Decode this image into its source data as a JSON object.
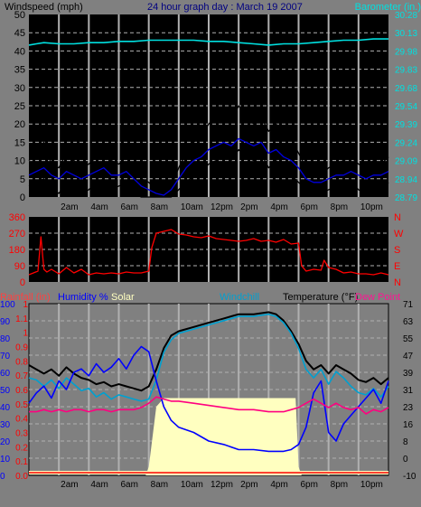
{
  "title": "24 hour graph day : March 19 2007",
  "colors": {
    "background": "#808080",
    "plot_bg": "#000000",
    "grid": "#b0b0b0",
    "wind": "#000000",
    "gust": "#000000",
    "wind_avg": "#0000e0",
    "wind_dir": "#ff0000",
    "barometer": "#00e0e0",
    "temperature": "#000000",
    "windchill": "#00a0d0",
    "dewpoint": "#ff0080",
    "humidity": "#0000ff",
    "solar": "#ffffc0",
    "rain": "#ff0000"
  },
  "time_labels": [
    "2am",
    "4am",
    "6am",
    "8am",
    "10am",
    "12pm",
    "2pm",
    "4pm",
    "6pm",
    "8pm",
    "10pm"
  ],
  "chart_data": [
    {
      "type": "line",
      "id": "wind_baro",
      "title": "24 hour graph day : March 19 2007",
      "left_label": "Windspeed (mph)",
      "right_label": "Barometer (in.)",
      "x_range_hours": [
        0,
        24
      ],
      "ylim_left": [
        0,
        50
      ],
      "left_ticks": [
        "50",
        "45",
        "40",
        "35",
        "30",
        "25",
        "20",
        "15",
        "10",
        "5",
        "0"
      ],
      "ylim_right": [
        28.79,
        30.28
      ],
      "right_ticks": [
        "30.28",
        "30.13",
        "29.98",
        "29.83",
        "29.68",
        "29.54",
        "29.39",
        "29.24",
        "29.09",
        "28.94",
        "28.79"
      ],
      "grid": true,
      "series": [
        {
          "key": "barometer",
          "axis": "right",
          "x": [
            0,
            0.5,
            1,
            2,
            3,
            4,
            5,
            6,
            7,
            8,
            9,
            10,
            11,
            12,
            13,
            14,
            15,
            16,
            17,
            18,
            19,
            20,
            21,
            22,
            23,
            24
          ],
          "values": [
            30.03,
            30.04,
            30.05,
            30.04,
            30.04,
            30.05,
            30.05,
            30.06,
            30.06,
            30.07,
            30.07,
            30.07,
            30.07,
            30.06,
            30.06,
            30.05,
            30.04,
            30.03,
            30.04,
            30.04,
            30.05,
            30.06,
            30.07,
            30.07,
            30.08,
            30.08
          ]
        },
        {
          "key": "gust",
          "axis": "left",
          "x": [
            0,
            0.5,
            1,
            1.5,
            2,
            2.5,
            3,
            3.5,
            4,
            4.5,
            5,
            5.5,
            6,
            6.5,
            7,
            7.5,
            8,
            8.5,
            9,
            9.5,
            10,
            10.5,
            11,
            11.5,
            12,
            12.5,
            13,
            13.5,
            14,
            14.5,
            15,
            15.5,
            16,
            16.5,
            17,
            17.5,
            18,
            18.5,
            19,
            19.5,
            20,
            20.5,
            21,
            21.5,
            22,
            22.5,
            23,
            23.5,
            24
          ],
          "values": [
            10,
            12,
            15,
            9,
            8,
            12,
            10,
            8,
            9,
            11,
            13,
            10,
            9,
            11,
            8,
            5,
            4,
            2,
            1,
            3,
            8,
            12,
            15,
            17,
            20,
            22,
            23,
            21,
            25,
            22,
            20,
            22,
            18,
            20,
            17,
            16,
            12,
            8,
            7,
            6,
            8,
            9,
            10,
            11,
            9,
            8,
            10,
            9,
            11
          ]
        },
        {
          "key": "wind_avg",
          "axis": "left",
          "x": [
            0,
            0.5,
            1,
            1.5,
            2,
            2.5,
            3,
            3.5,
            4,
            4.5,
            5,
            5.5,
            6,
            6.5,
            7,
            7.5,
            8,
            8.5,
            9,
            9.5,
            10,
            10.5,
            11,
            11.5,
            12,
            12.5,
            13,
            13.5,
            14,
            14.5,
            15,
            15.5,
            16,
            16.5,
            17,
            17.5,
            18,
            18.5,
            19,
            19.5,
            20,
            20.5,
            21,
            21.5,
            22,
            22.5,
            23,
            23.5,
            24
          ],
          "values": [
            6,
            7,
            8,
            6,
            5,
            7,
            6,
            5,
            6,
            7,
            8,
            6,
            6,
            7,
            5,
            3,
            2,
            1,
            0.5,
            2,
            5,
            8,
            10,
            11,
            13,
            14,
            15,
            14,
            16,
            15,
            14,
            15,
            12,
            13,
            11,
            10,
            8,
            5,
            4,
            4,
            5,
            6,
            6,
            7,
            6,
            5,
            6,
            6,
            7
          ]
        },
        {
          "key": "wind",
          "axis": "left",
          "x": [
            0,
            0.5,
            1,
            1.5,
            2,
            2.5,
            3,
            3.5,
            4,
            4.5,
            5,
            5.5,
            6,
            6.5,
            7,
            7.5,
            8,
            8.5,
            9,
            9.5,
            10,
            10.5,
            11,
            11.5,
            12,
            12.5,
            13,
            13.5,
            14,
            14.5,
            15,
            15.5,
            16,
            16.5,
            17,
            17.5,
            18,
            18.5,
            19,
            19.5,
            20,
            20.5,
            21,
            21.5,
            22,
            22.5,
            23,
            23.5,
            24
          ],
          "values": [
            3,
            4,
            5,
            2,
            1,
            4,
            3,
            1,
            2,
            4,
            5,
            2,
            3,
            4,
            1,
            0,
            0,
            0,
            0,
            0,
            2,
            4,
            6,
            7,
            9,
            10,
            12,
            10,
            13,
            11,
            10,
            12,
            8,
            10,
            7,
            6,
            4,
            2,
            1,
            1,
            2,
            3,
            3,
            4,
            2,
            1,
            3,
            2,
            4
          ]
        }
      ]
    },
    {
      "type": "line",
      "id": "wind_direction",
      "ylim": [
        0,
        360
      ],
      "left_ticks": [
        "360",
        "270",
        "180",
        "90",
        "0"
      ],
      "right_ticks": [
        "N",
        "W",
        "S",
        "E",
        "N"
      ],
      "grid": true,
      "series": [
        {
          "key": "wind_dir",
          "x": [
            0,
            0.3,
            0.6,
            0.8,
            1,
            1.2,
            1.5,
            2,
            2.5,
            3,
            3.5,
            4,
            4.5,
            5,
            5.5,
            6,
            6.5,
            7,
            7.5,
            8,
            8.2,
            8.5,
            9,
            9.5,
            10,
            10.5,
            11,
            11.5,
            12,
            12.5,
            13,
            13.5,
            14,
            14.5,
            15,
            15.5,
            16,
            16.5,
            17,
            17.5,
            18,
            18.2,
            18.5,
            19,
            19.5,
            19.7,
            20,
            20.5,
            21,
            21.5,
            22,
            22.5,
            23,
            23.5,
            24
          ],
          "values": [
            40,
            50,
            60,
            250,
            70,
            55,
            70,
            45,
            80,
            50,
            70,
            40,
            50,
            45,
            50,
            45,
            55,
            50,
            50,
            60,
            190,
            270,
            280,
            290,
            265,
            260,
            250,
            245,
            255,
            240,
            235,
            230,
            225,
            230,
            240,
            225,
            230,
            220,
            235,
            210,
            215,
            90,
            60,
            70,
            65,
            120,
            80,
            70,
            50,
            55,
            45,
            45,
            40,
            50,
            40
          ]
        }
      ]
    },
    {
      "type": "line",
      "id": "temp_humidity",
      "labels": {
        "rainfall": "Rainfall (in)",
        "humidity": "Humidity %",
        "solar": "Solar",
        "windchill": "Windchill",
        "temperature": "Temperature (°F)",
        "dewpoint": "Dew Point"
      },
      "humidity_ticks": [
        "100",
        "90",
        "80",
        "70",
        "60",
        "50",
        "40",
        "30",
        "20",
        "10",
        "0"
      ],
      "rain_ticks": [
        "1",
        "1.1",
        "1",
        "0.9",
        "0.8",
        "0.7",
        "0.6",
        "0.5",
        "0.4",
        "0.3",
        "0.2",
        "0.1",
        "0.0"
      ],
      "temp_ticks": [
        "71",
        "63",
        "55",
        "47",
        "39",
        "31",
        "23",
        "16",
        "8",
        "0",
        "-10"
      ],
      "ylim_temp": [
        -10,
        71
      ],
      "ylim_humidity": [
        0,
        100
      ],
      "grid": true,
      "series": [
        {
          "key": "solar",
          "axis": "humidity",
          "type": "area",
          "x": [
            7.8,
            8,
            8.5,
            9,
            9.5,
            10,
            11,
            12,
            13,
            14,
            15,
            16,
            17,
            17.8,
            18,
            18.2
          ],
          "values": [
            0,
            5,
            40,
            45,
            45,
            45,
            45,
            45,
            45,
            45,
            45,
            45,
            45,
            45,
            5,
            0
          ]
        },
        {
          "key": "temperature",
          "axis": "temp",
          "x": [
            0,
            0.5,
            1,
            1.5,
            2,
            2.5,
            3,
            3.5,
            4,
            4.5,
            5,
            5.5,
            6,
            6.5,
            7,
            7.5,
            8,
            8.5,
            9,
            9.5,
            10,
            11,
            12,
            13,
            14,
            15,
            16,
            16.5,
            17,
            17.5,
            18,
            18.5,
            19,
            19.5,
            20,
            20.5,
            21,
            21.5,
            22,
            22.5,
            23,
            23.5,
            24
          ],
          "values": [
            42,
            40,
            38,
            40,
            37,
            41,
            38,
            36,
            35,
            33,
            34,
            32,
            33,
            32,
            31,
            30,
            32,
            40,
            50,
            56,
            58,
            60,
            62,
            64,
            66,
            66,
            67,
            66,
            63,
            58,
            52,
            44,
            40,
            42,
            38,
            42,
            40,
            38,
            35,
            34,
            36,
            33,
            36
          ]
        },
        {
          "key": "windchill",
          "axis": "temp",
          "x": [
            0,
            0.5,
            1,
            1.5,
            2,
            2.5,
            3,
            3.5,
            4,
            4.5,
            5,
            5.5,
            6,
            6.5,
            7,
            7.5,
            8,
            8.5,
            9,
            9.5,
            10,
            11,
            12,
            13,
            14,
            15,
            16,
            16.5,
            17,
            17.5,
            18,
            18.5,
            19,
            19.5,
            20,
            20.5,
            21,
            21.5,
            22,
            22.5,
            23,
            23.5,
            24
          ],
          "values": [
            36,
            35,
            32,
            35,
            31,
            36,
            33,
            30,
            31,
            27,
            29,
            26,
            28,
            27,
            26,
            25,
            26,
            35,
            48,
            54,
            57,
            59,
            61,
            63,
            65,
            65,
            66,
            65,
            62,
            57,
            50,
            40,
            36,
            40,
            33,
            39,
            36,
            32,
            29,
            28,
            31,
            27,
            32
          ]
        },
        {
          "key": "humidity",
          "axis": "humidity",
          "x": [
            0,
            0.5,
            1,
            1.5,
            2,
            2.5,
            3,
            3.5,
            4,
            4.5,
            5,
            5.5,
            6,
            6.5,
            7,
            7.5,
            8,
            8.5,
            9,
            9.5,
            10,
            11,
            12,
            13,
            14,
            15,
            16,
            17,
            17.5,
            18,
            18.5,
            19,
            19.5,
            20,
            20.5,
            21,
            21.5,
            22,
            22.5,
            23,
            23.5,
            24
          ],
          "values": [
            42,
            48,
            52,
            45,
            55,
            50,
            60,
            62,
            58,
            65,
            60,
            63,
            68,
            62,
            70,
            75,
            72,
            55,
            40,
            32,
            28,
            25,
            20,
            18,
            15,
            15,
            14,
            14,
            15,
            18,
            28,
            48,
            55,
            25,
            20,
            30,
            35,
            40,
            45,
            50,
            42,
            55
          ]
        },
        {
          "key": "dewpoint",
          "axis": "temp",
          "x": [
            0,
            0.5,
            1,
            1.5,
            2,
            2.5,
            3,
            3.5,
            4,
            4.5,
            5,
            5.5,
            6,
            6.5,
            7,
            7.5,
            8,
            8.5,
            9,
            9.5,
            10,
            11,
            12,
            13,
            14,
            15,
            16,
            17,
            17.5,
            18,
            18.5,
            19,
            19.5,
            20,
            20.5,
            21,
            21.5,
            22,
            22.5,
            23,
            23.5,
            24
          ],
          "values": [
            20,
            20,
            21,
            20,
            21,
            20,
            21,
            21,
            20,
            21,
            21,
            20,
            21,
            21,
            21,
            22,
            24,
            27,
            26,
            25,
            25,
            24,
            23,
            22,
            21,
            21,
            20,
            20,
            21,
            22,
            24,
            26,
            24,
            22,
            24,
            22,
            21,
            22,
            19,
            21,
            20,
            22
          ]
        },
        {
          "key": "rain",
          "axis": "humidity",
          "x": [
            0,
            24
          ],
          "values": [
            0.5,
            0.5
          ]
        }
      ]
    }
  ]
}
